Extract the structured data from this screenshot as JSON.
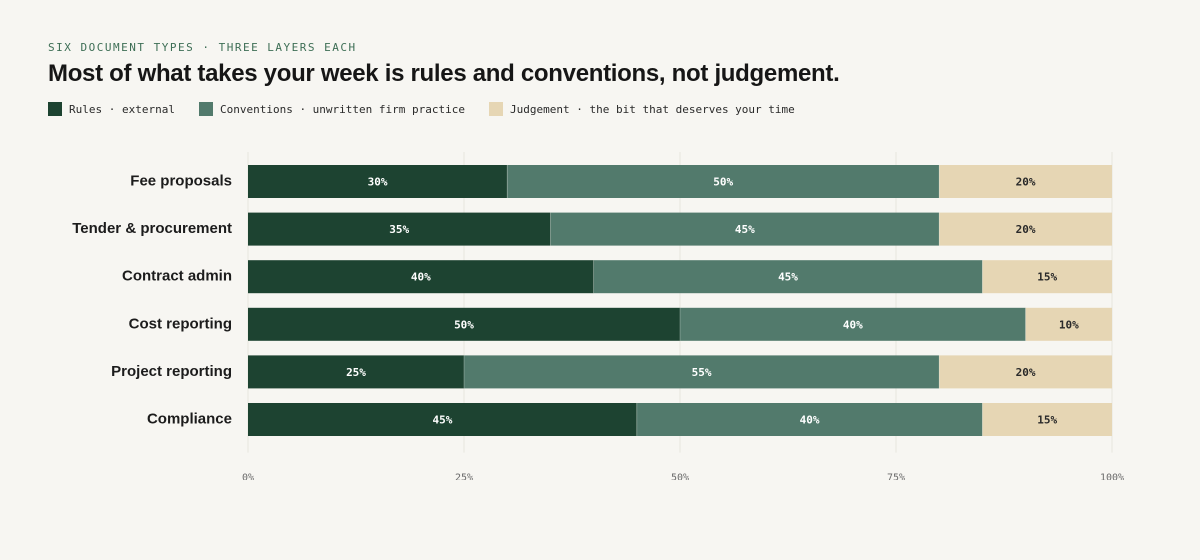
{
  "eyebrow": "SIX DOCUMENT TYPES · THREE LAYERS EACH",
  "title": "Most of what takes your week is rules and conventions, not judgement.",
  "legend": [
    {
      "label": "Rules · external",
      "color": "#1d4331"
    },
    {
      "label": "Conventions · unwritten firm practice",
      "color": "#527a6c"
    },
    {
      "label": "Judgement · the bit that deserves your time",
      "color": "#e6d6b4"
    }
  ],
  "chart_data": {
    "type": "bar",
    "orientation": "horizontal",
    "stacked": true,
    "categories": [
      "Fee proposals",
      "Tender & procurement",
      "Contract admin",
      "Cost reporting",
      "Project reporting",
      "Compliance"
    ],
    "series": [
      {
        "name": "Rules · external",
        "color": "#1d4331",
        "label_color": "#ffffff",
        "values": [
          30,
          35,
          40,
          50,
          25,
          45
        ]
      },
      {
        "name": "Conventions · unwritten firm practice",
        "color": "#527a6c",
        "label_color": "#ffffff",
        "values": [
          50,
          45,
          45,
          40,
          55,
          40
        ]
      },
      {
        "name": "Judgement · the bit that deserves your time",
        "color": "#e6d6b4",
        "label_color": "#2a2a2a",
        "values": [
          20,
          20,
          15,
          10,
          20,
          15
        ]
      }
    ],
    "xlim": [
      0,
      100
    ],
    "xticks": [
      0,
      25,
      50,
      75,
      100
    ],
    "xtick_labels": [
      "0%",
      "25%",
      "50%",
      "75%",
      "100%"
    ],
    "value_suffix": "%",
    "grid": true,
    "legend_position": "top-left"
  }
}
